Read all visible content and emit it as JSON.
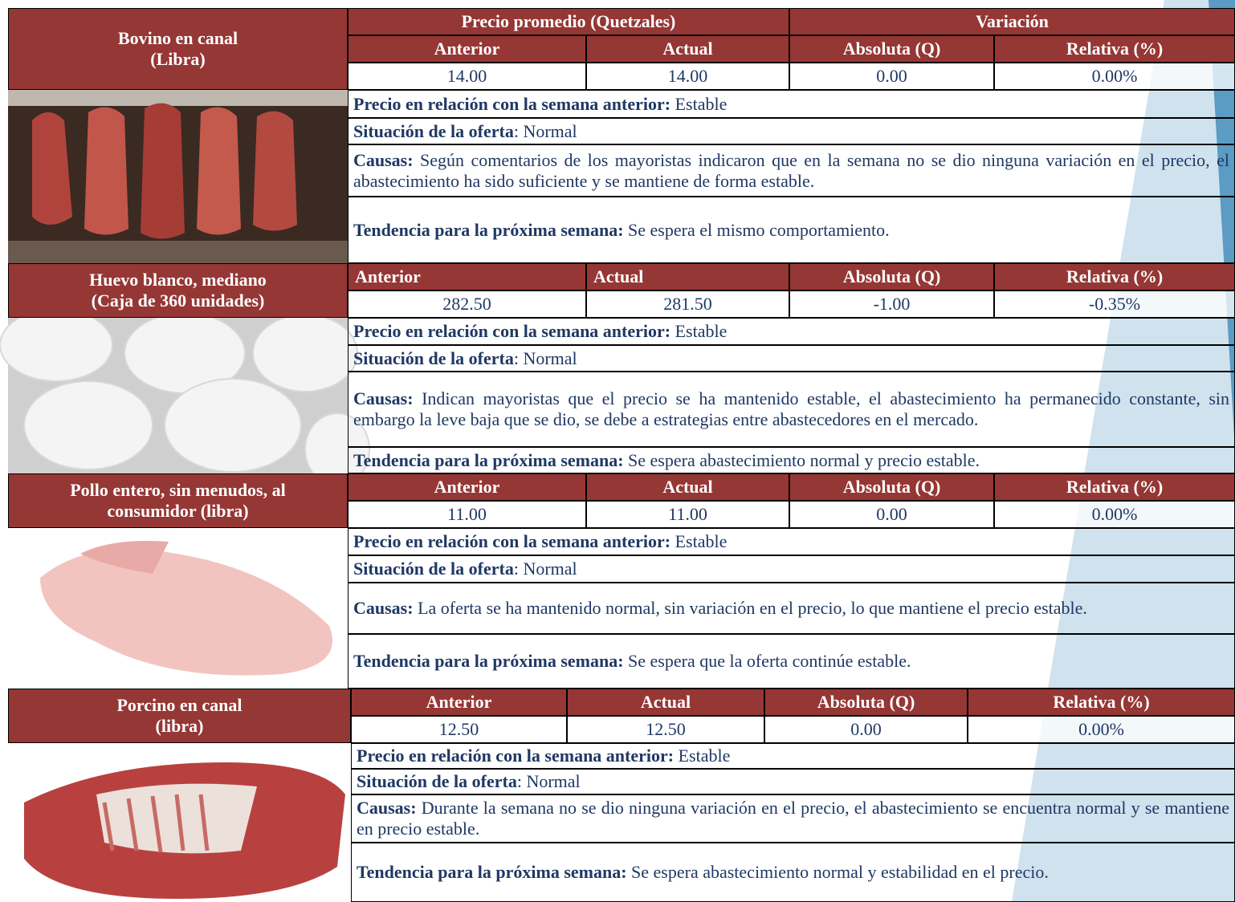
{
  "header": {
    "price_title": "Precio promedio (Quetzales)",
    "variation_title": "Variación"
  },
  "products": [
    {
      "name_lines": [
        "Bovino en canal",
        "(Libra)"
      ],
      "columns": [
        "Anterior",
        "Actual",
        "Absoluta (Q)",
        "Relativa (%)"
      ],
      "values": [
        "14.00",
        "14.00",
        "0.00",
        "0.00%"
      ],
      "price_relation_label": "Precio en relación con la semana anterior:",
      "price_relation": "Estable",
      "supply_label": "Situación de la oferta",
      "supply": ": Normal",
      "causes_label": "Causas:",
      "causes": "Según comentarios de los mayoristas indicaron que en la semana no se dio ninguna variación en el precio, el abastecimiento ha sido suficiente y se mantiene de forma estable.",
      "trend_label": "Tendencia para la próxima semana:",
      "trend": "Se espera el mismo comportamiento."
    },
    {
      "name_lines": [
        "Huevo blanco, mediano",
        "(Caja de 360 unidades)"
      ],
      "columns": [
        "Anterior",
        "Actual",
        "Absoluta (Q)",
        "Relativa (%)"
      ],
      "values": [
        "282.50",
        "281.50",
        "-1.00",
        "-0.35%"
      ],
      "price_relation_label": "Precio en relación con la semana anterior:",
      "price_relation": "Estable",
      "supply_label": "Situación de la oferta",
      "supply": ": Normal",
      "causes_label": "Causas:",
      "causes": "Indican mayoristas que el precio se ha mantenido estable, el abastecimiento ha permanecido constante, sin embargo la leve baja que se dio, se debe a estrategias entre abastecedores en el mercado.",
      "trend_label": "Tendencia para la próxima semana:",
      "trend": "Se espera abastecimiento normal y precio estable."
    },
    {
      "name_lines": [
        "Pollo entero, sin menudos, al",
        "consumidor (libra)"
      ],
      "columns": [
        "Anterior",
        "Actual",
        "Absoluta (Q)",
        "Relativa (%)"
      ],
      "values": [
        "11.00",
        "11.00",
        "0.00",
        "0.00%"
      ],
      "price_relation_label": "Precio en relación con la semana anterior:",
      "price_relation": "Estable",
      "supply_label": "Situación de la oferta",
      "supply": ": Normal",
      "causes_label": "Causas:",
      "causes": "La oferta se ha mantenido normal, sin variación en el precio, lo que mantiene el precio estable.",
      "trend_label": "Tendencia para la próxima semana:",
      "trend": "Se espera que la oferta continúe estable."
    },
    {
      "name_lines": [
        "Porcino en canal",
        "(libra)"
      ],
      "columns": [
        "Anterior",
        "Actual",
        "Absoluta (Q)",
        "Relativa (%)"
      ],
      "values": [
        "12.50",
        "12.50",
        "0.00",
        "0.00%"
      ],
      "price_relation_label": "Precio en relación con la semana anterior:",
      "price_relation": "Estable",
      "supply_label": "Situación de la oferta",
      "supply": ": Normal",
      "causes_label": "Causas:",
      "causes": "Durante la semana no se dio ninguna variación en el precio, el abastecimiento se encuentra normal y se mantiene en precio estable.",
      "trend_label": "Tendencia para la próxima semana:",
      "trend": "Se espera abastecimiento normal y estabilidad en el precio."
    }
  ]
}
